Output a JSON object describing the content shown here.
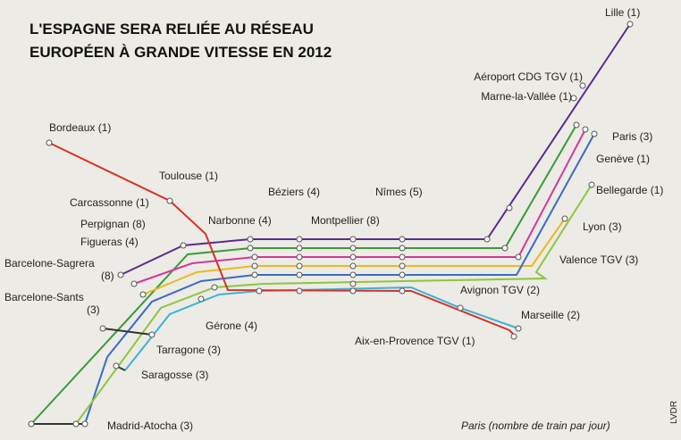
{
  "title": [
    "L'ESPAGNE SERA RELIÉE AU RÉSEAU",
    "EUROPÉEN À GRANDE VITESSE EN 2012"
  ],
  "stations": [
    {
      "label": "Lille (1)"
    },
    {
      "label": "Aéroport CDG TGV (1)"
    },
    {
      "label": "Marne-la-Vallée (1)"
    },
    {
      "label": "Paris (3)"
    },
    {
      "label": "Genève (1)"
    },
    {
      "label": "Bellegarde (1)"
    },
    {
      "label": "Lyon (3)"
    },
    {
      "label": "Valence TGV (3)"
    },
    {
      "label": "Avignon TGV (2)"
    },
    {
      "label": "Marseille (2)"
    },
    {
      "label": "Aix-en-Provence TGV (1)"
    },
    {
      "label": "Nîmes (5)"
    },
    {
      "label": "Montpellier (8)"
    },
    {
      "label": "Béziers (4)"
    },
    {
      "label": "Narbonne (4)"
    },
    {
      "label": "Bordeaux (1)"
    },
    {
      "label": "Toulouse (1)"
    },
    {
      "label": "Carcassonne (1)"
    },
    {
      "label": "Perpignan (8)"
    },
    {
      "label": "Figueras (4)"
    },
    {
      "label": [
        "Barcelone-Sagrera",
        "(8)"
      ]
    },
    {
      "label": [
        "Barcelone-Sants",
        "(3)"
      ]
    },
    {
      "label": "Gérone (4)"
    },
    {
      "label": "Tarragone (3)"
    },
    {
      "label": "Saragosse (3)"
    },
    {
      "label": "Madrid-Atocha (3)"
    }
  ],
  "note": "Paris (nombre de train par jour)",
  "credit": "LVDR"
}
